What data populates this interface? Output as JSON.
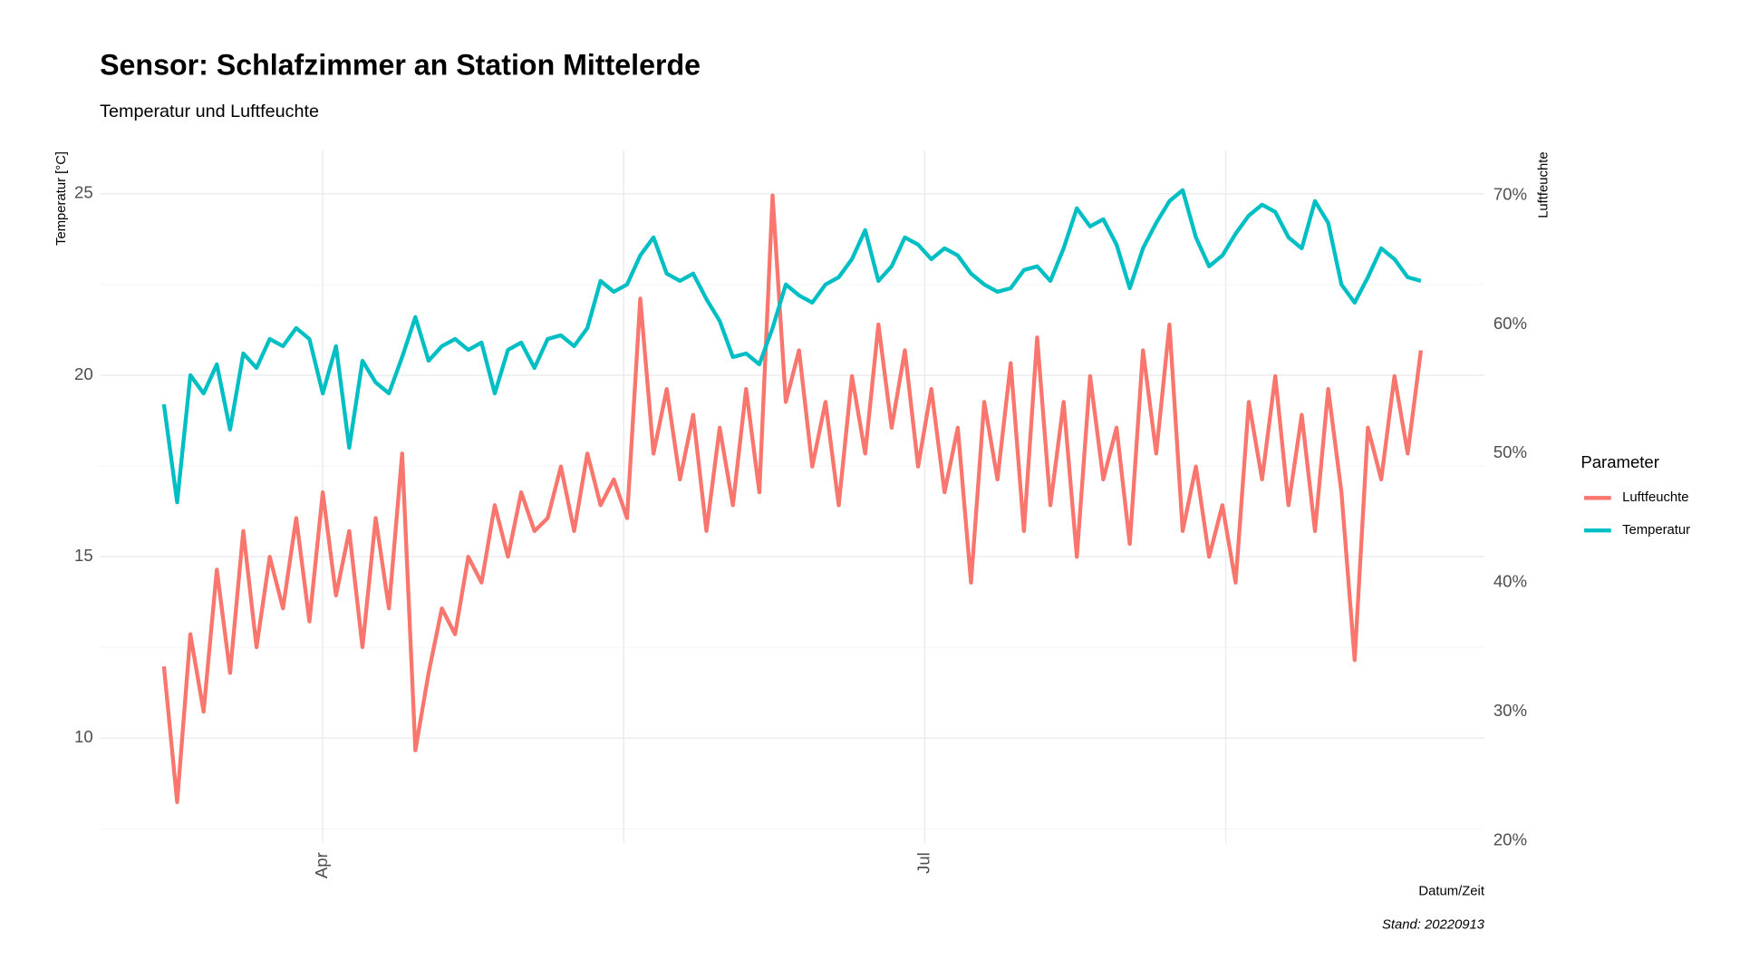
{
  "chart_data": {
    "type": "line",
    "title": "Sensor: Schlafzimmer an Station Mittelerde",
    "subtitle": "Temperatur und Luftfeuchte",
    "y_label": "Temperatur [°C]",
    "y2_label": "Luftfeuchte",
    "x_label": "Datum/Zeit",
    "caption": "Stand: 20220913",
    "legend_title": "Parameter",
    "legend_position": "right",
    "grid": true,
    "x": [
      67,
      69,
      71,
      73,
      75,
      77,
      79,
      81,
      83,
      85,
      87,
      89,
      91,
      93,
      95,
      97,
      99,
      101,
      103,
      105,
      107,
      109,
      111,
      113,
      115,
      117,
      119,
      121,
      123,
      125,
      127,
      129,
      131,
      133,
      135,
      137,
      139,
      141,
      143,
      145,
      147,
      149,
      151,
      153,
      155,
      157,
      159,
      161,
      163,
      165,
      167,
      169,
      171,
      173,
      175,
      177,
      179,
      181,
      183,
      185,
      187,
      189,
      191,
      193,
      195,
      197,
      199,
      201,
      203,
      205,
      207,
      209,
      211,
      213,
      215,
      217,
      219,
      221,
      223,
      225,
      227,
      229,
      231,
      233,
      235,
      237,
      239,
      241,
      243,
      245,
      247,
      249,
      251,
      253,
      255,
      257
    ],
    "xlim": [
      57.3,
      266.6
    ],
    "xticks": [
      {
        "value": 91,
        "label": "Apr"
      },
      {
        "value": 182,
        "label": "Jul"
      }
    ],
    "xgrid_minor": [
      136.5,
      227.5
    ],
    "ylim": [
      7.1,
      26.2
    ],
    "yticks": [
      10,
      15,
      20,
      25
    ],
    "ygrid_minor": [
      7.5,
      12.5,
      17.5,
      22.5
    ],
    "y2lim": [
      19.8,
      73.5
    ],
    "y2ticks": [
      {
        "value": 20,
        "label": "20%"
      },
      {
        "value": 30,
        "label": "30%"
      },
      {
        "value": 40,
        "label": "40%"
      },
      {
        "value": 50,
        "label": "50%"
      },
      {
        "value": 60,
        "label": "60%"
      },
      {
        "value": 70,
        "label": "70%"
      }
    ],
    "series": [
      {
        "name": "Luftfeuchte",
        "color": "#F8766D",
        "axis": "y2",
        "values": [
          33.5,
          23,
          36,
          30,
          41,
          33,
          44,
          35,
          42,
          38,
          45,
          37,
          47,
          39,
          44,
          35,
          45,
          38,
          50,
          27,
          33,
          38,
          36,
          42,
          40,
          46,
          42,
          47,
          44,
          45,
          49,
          44,
          50,
          46,
          48,
          45,
          62,
          50,
          55,
          48,
          53,
          44,
          52,
          46,
          55,
          47,
          70,
          54,
          58,
          49,
          54,
          46,
          56,
          50,
          60,
          52,
          58,
          49,
          55,
          47,
          52,
          40,
          54,
          48,
          57,
          44,
          59,
          46,
          54,
          42,
          56,
          48,
          52,
          43,
          58,
          50,
          60,
          44,
          49,
          42,
          46,
          40,
          54,
          48,
          56,
          46,
          53,
          44,
          55,
          47,
          34,
          52,
          48,
          56,
          50,
          58
        ]
      },
      {
        "name": "Temperatur",
        "color": "#00BFC4",
        "values": [
          19.2,
          16.5,
          20.0,
          19.5,
          20.3,
          18.5,
          20.6,
          20.2,
          21.0,
          20.8,
          21.3,
          21.0,
          19.5,
          20.8,
          18.0,
          20.4,
          19.8,
          19.5,
          20.5,
          21.6,
          20.4,
          20.8,
          21.0,
          20.7,
          20.9,
          19.5,
          20.7,
          20.9,
          20.2,
          21.0,
          21.1,
          20.8,
          21.3,
          22.6,
          22.3,
          22.5,
          23.3,
          23.8,
          22.8,
          22.6,
          22.8,
          22.1,
          21.5,
          20.5,
          20.6,
          20.3,
          21.3,
          22.5,
          22.2,
          22.0,
          22.5,
          22.7,
          23.2,
          24.0,
          22.6,
          23.0,
          23.8,
          23.6,
          23.2,
          23.5,
          23.3,
          22.8,
          22.5,
          22.3,
          22.4,
          22.9,
          23.0,
          22.6,
          23.5,
          24.6,
          24.1,
          24.3,
          23.6,
          22.4,
          23.5,
          24.2,
          24.8,
          25.1,
          23.8,
          23.0,
          23.3,
          23.9,
          24.4,
          24.7,
          24.5,
          23.8,
          23.5,
          24.8,
          24.2,
          22.5,
          22.0,
          22.7,
          23.5,
          23.2,
          22.7,
          22.6
        ]
      }
    ]
  }
}
